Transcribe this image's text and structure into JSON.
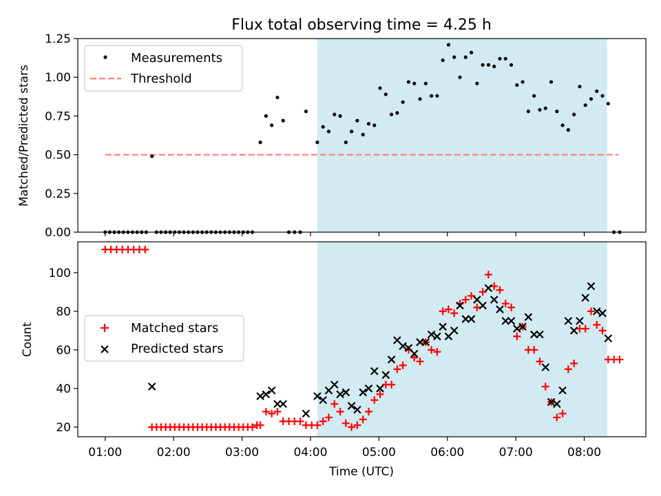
{
  "chart_data": [
    {
      "type": "scatter",
      "title": "Flux total observing time = 4.25 h",
      "xlabel": "",
      "ylabel": "Matched/Predicted stars",
      "ylim": [
        0,
        1.25
      ],
      "yticks": [
        "0.00",
        "0.25",
        "0.50",
        "0.75",
        "1.00",
        "1.25"
      ],
      "x_unit": "hours UTC",
      "xlim": [
        0.6,
        8.9
      ],
      "shaded_interval": [
        "04:06",
        "08:20"
      ],
      "shade_color": "#add8e6",
      "legend": {
        "position": "top-left",
        "entries": [
          "Measurements",
          "Threshold"
        ]
      },
      "threshold": {
        "name": "Threshold",
        "value": 0.5,
        "x_range": [
          "01:00",
          "08:30"
        ],
        "color": "#ff7f7f",
        "style": "dashed"
      },
      "series": [
        {
          "name": "Measurements",
          "color": "#000000",
          "points": [
            [
              "01:00",
              0
            ],
            [
              "01:04",
              0
            ],
            [
              "01:08",
              0
            ],
            [
              "01:12",
              0
            ],
            [
              "01:16",
              0
            ],
            [
              "01:20",
              0
            ],
            [
              "01:24",
              0
            ],
            [
              "01:28",
              0
            ],
            [
              "01:32",
              0
            ],
            [
              "01:36",
              0
            ],
            [
              "01:41",
              0.49
            ],
            [
              "01:45",
              0
            ],
            [
              "01:49",
              0
            ],
            [
              "01:53",
              0
            ],
            [
              "01:57",
              0
            ],
            [
              "02:01",
              0
            ],
            [
              "02:05",
              0
            ],
            [
              "02:09",
              0
            ],
            [
              "02:13",
              0
            ],
            [
              "02:17",
              0
            ],
            [
              "02:21",
              0
            ],
            [
              "02:25",
              0
            ],
            [
              "02:29",
              0
            ],
            [
              "02:33",
              0
            ],
            [
              "02:37",
              0
            ],
            [
              "02:41",
              0
            ],
            [
              "02:45",
              0
            ],
            [
              "02:49",
              0
            ],
            [
              "02:53",
              0
            ],
            [
              "02:57",
              0
            ],
            [
              "03:01",
              0
            ],
            [
              "03:05",
              0
            ],
            [
              "03:09",
              0
            ],
            [
              "03:16",
              0.58
            ],
            [
              "03:21",
              0.75
            ],
            [
              "03:26",
              0.69
            ],
            [
              "03:31",
              0.87
            ],
            [
              "03:36",
              0.72
            ],
            [
              "03:41",
              0
            ],
            [
              "03:46",
              0
            ],
            [
              "03:51",
              0
            ],
            [
              "03:56",
              0.78
            ],
            [
              "04:06",
              0.58
            ],
            [
              "04:11",
              0.68
            ],
            [
              "04:16",
              0.65
            ],
            [
              "04:21",
              0.76
            ],
            [
              "04:26",
              0.75
            ],
            [
              "04:31",
              0.58
            ],
            [
              "04:36",
              0.65
            ],
            [
              "04:41",
              0.72
            ],
            [
              "04:46",
              0.63
            ],
            [
              "04:51",
              0.7
            ],
            [
              "04:56",
              0.69
            ],
            [
              "05:01",
              0.93
            ],
            [
              "05:06",
              0.89
            ],
            [
              "05:11",
              0.76
            ],
            [
              "05:16",
              0.77
            ],
            [
              "05:21",
              0.84
            ],
            [
              "05:26",
              0.97
            ],
            [
              "05:31",
              0.96
            ],
            [
              "05:36",
              0.86
            ],
            [
              "05:41",
              0.96
            ],
            [
              "05:46",
              0.88
            ],
            [
              "05:51",
              0.88
            ],
            [
              "05:56",
              1.11
            ],
            [
              "06:01",
              1.21
            ],
            [
              "06:06",
              1.13
            ],
            [
              "06:11",
              1.0
            ],
            [
              "06:16",
              1.13
            ],
            [
              "06:21",
              1.16
            ],
            [
              "06:26",
              0.96
            ],
            [
              "06:31",
              1.08
            ],
            [
              "06:36",
              1.08
            ],
            [
              "06:41",
              1.07
            ],
            [
              "06:46",
              1.12
            ],
            [
              "06:51",
              1.12
            ],
            [
              "06:56",
              1.08
            ],
            [
              "07:01",
              0.95
            ],
            [
              "07:06",
              0.97
            ],
            [
              "07:11",
              0.78
            ],
            [
              "07:16",
              0.88
            ],
            [
              "07:21",
              0.79
            ],
            [
              "07:26",
              0.8
            ],
            [
              "07:31",
              0.97
            ],
            [
              "07:36",
              0.78
            ],
            [
              "07:41",
              0.69
            ],
            [
              "07:46",
              0.66
            ],
            [
              "07:51",
              0.76
            ],
            [
              "07:56",
              0.94
            ],
            [
              "08:01",
              0.82
            ],
            [
              "08:06",
              0.86
            ],
            [
              "08:11",
              0.91
            ],
            [
              "08:16",
              0.88
            ],
            [
              "08:21",
              0.83
            ],
            [
              "08:26",
              0
            ],
            [
              "08:31",
              0
            ]
          ]
        }
      ]
    },
    {
      "type": "scatter",
      "title": "",
      "xlabel": "Time (UTC)",
      "ylabel": "Count",
      "ylim": [
        15,
        116
      ],
      "yticks": [
        "20",
        "40",
        "60",
        "80",
        "100"
      ],
      "xticks": [
        "01:00",
        "02:00",
        "03:00",
        "04:00",
        "05:00",
        "06:00",
        "07:00",
        "08:00"
      ],
      "x_unit": "hours UTC",
      "xlim": [
        0.6,
        8.9
      ],
      "shaded_interval": [
        "04:06",
        "08:20"
      ],
      "legend": {
        "position": "center-left",
        "entries": [
          "Matched stars",
          "Predicted stars"
        ]
      },
      "series": [
        {
          "name": "Matched stars",
          "marker": "plus",
          "color": "#ff0000",
          "points": [
            [
              "01:00",
              112
            ],
            [
              "01:05",
              112
            ],
            [
              "01:10",
              112
            ],
            [
              "01:15",
              112
            ],
            [
              "01:20",
              112
            ],
            [
              "01:25",
              112
            ],
            [
              "01:30",
              112
            ],
            [
              "01:35",
              112
            ],
            [
              "01:41",
              20
            ],
            [
              "01:45",
              20
            ],
            [
              "01:49",
              20
            ],
            [
              "01:53",
              20
            ],
            [
              "01:57",
              20
            ],
            [
              "02:01",
              20
            ],
            [
              "02:05",
              20
            ],
            [
              "02:09",
              20
            ],
            [
              "02:13",
              20
            ],
            [
              "02:17",
              20
            ],
            [
              "02:21",
              20
            ],
            [
              "02:25",
              20
            ],
            [
              "02:29",
              20
            ],
            [
              "02:33",
              20
            ],
            [
              "02:37",
              20
            ],
            [
              "02:41",
              20
            ],
            [
              "02:45",
              20
            ],
            [
              "02:49",
              20
            ],
            [
              "02:53",
              20
            ],
            [
              "02:57",
              20
            ],
            [
              "03:01",
              20
            ],
            [
              "03:05",
              20
            ],
            [
              "03:09",
              20
            ],
            [
              "03:13",
              21
            ],
            [
              "03:16",
              21
            ],
            [
              "03:21",
              28
            ],
            [
              "03:26",
              27
            ],
            [
              "03:31",
              28
            ],
            [
              "03:36",
              23
            ],
            [
              "03:41",
              23
            ],
            [
              "03:46",
              23
            ],
            [
              "03:51",
              23
            ],
            [
              "03:56",
              21
            ],
            [
              "04:01",
              21
            ],
            [
              "04:06",
              21
            ],
            [
              "04:11",
              23
            ],
            [
              "04:16",
              25
            ],
            [
              "04:21",
              32
            ],
            [
              "04:26",
              28
            ],
            [
              "04:31",
              22
            ],
            [
              "04:36",
              20
            ],
            [
              "04:41",
              21
            ],
            [
              "04:46",
              24
            ],
            [
              "04:51",
              28
            ],
            [
              "04:56",
              34
            ],
            [
              "05:01",
              37
            ],
            [
              "05:06",
              42
            ],
            [
              "05:11",
              42
            ],
            [
              "05:16",
              50
            ],
            [
              "05:21",
              52
            ],
            [
              "05:26",
              60
            ],
            [
              "05:31",
              56
            ],
            [
              "05:36",
              54
            ],
            [
              "05:41",
              64
            ],
            [
              "05:46",
              60
            ],
            [
              "05:51",
              59
            ],
            [
              "05:56",
              80
            ],
            [
              "06:01",
              81
            ],
            [
              "06:06",
              79
            ],
            [
              "06:11",
              84
            ],
            [
              "06:16",
              86
            ],
            [
              "06:21",
              88
            ],
            [
              "06:26",
              82
            ],
            [
              "06:31",
              90
            ],
            [
              "06:36",
              99
            ],
            [
              "06:41",
              93
            ],
            [
              "06:46",
              91
            ],
            [
              "06:51",
              84
            ],
            [
              "06:56",
              82
            ],
            [
              "07:01",
              67
            ],
            [
              "07:06",
              72
            ],
            [
              "07:11",
              60
            ],
            [
              "07:16",
              60
            ],
            [
              "07:21",
              54
            ],
            [
              "07:26",
              41
            ],
            [
              "07:31",
              33
            ],
            [
              "07:36",
              25
            ],
            [
              "07:41",
              27
            ],
            [
              "07:46",
              50
            ],
            [
              "07:51",
              53
            ],
            [
              "07:56",
              71
            ],
            [
              "08:01",
              71
            ],
            [
              "08:06",
              80
            ],
            [
              "08:11",
              73
            ],
            [
              "08:16",
              70
            ],
            [
              "08:21",
              55
            ],
            [
              "08:26",
              55
            ],
            [
              "08:31",
              55
            ]
          ]
        },
        {
          "name": "Predicted stars",
          "marker": "x",
          "color": "#000000",
          "points": [
            [
              "01:41",
              41
            ],
            [
              "03:16",
              36
            ],
            [
              "03:21",
              37
            ],
            [
              "03:26",
              39
            ],
            [
              "03:31",
              32
            ],
            [
              "03:36",
              32
            ],
            [
              "03:56",
              27
            ],
            [
              "04:06",
              36
            ],
            [
              "04:11",
              34
            ],
            [
              "04:16",
              39
            ],
            [
              "04:21",
              42
            ],
            [
              "04:26",
              37
            ],
            [
              "04:31",
              38
            ],
            [
              "04:36",
              31
            ],
            [
              "04:41",
              29
            ],
            [
              "04:46",
              38
            ],
            [
              "04:51",
              40
            ],
            [
              "04:56",
              49
            ],
            [
              "05:01",
              40
            ],
            [
              "05:06",
              47
            ],
            [
              "05:11",
              55
            ],
            [
              "05:16",
              65
            ],
            [
              "05:21",
              62
            ],
            [
              "05:26",
              61
            ],
            [
              "05:31",
              58
            ],
            [
              "05:36",
              64
            ],
            [
              "05:41",
              64
            ],
            [
              "05:46",
              68
            ],
            [
              "05:51",
              67
            ],
            [
              "05:56",
              72
            ],
            [
              "06:01",
              67
            ],
            [
              "06:06",
              70
            ],
            [
              "06:11",
              83
            ],
            [
              "06:16",
              76
            ],
            [
              "06:21",
              76
            ],
            [
              "06:26",
              86
            ],
            [
              "06:31",
              83
            ],
            [
              "06:36",
              92
            ],
            [
              "06:41",
              86
            ],
            [
              "06:46",
              81
            ],
            [
              "06:51",
              75
            ],
            [
              "06:56",
              75
            ],
            [
              "07:01",
              71
            ],
            [
              "07:06",
              72
            ],
            [
              "07:11",
              77
            ],
            [
              "07:16",
              68
            ],
            [
              "07:21",
              68
            ],
            [
              "07:26",
              51
            ],
            [
              "07:31",
              33
            ],
            [
              "07:36",
              32
            ],
            [
              "07:41",
              39
            ],
            [
              "07:46",
              75
            ],
            [
              "07:51",
              70
            ],
            [
              "07:56",
              75
            ],
            [
              "08:01",
              87
            ],
            [
              "08:06",
              93
            ],
            [
              "08:11",
              80
            ],
            [
              "08:16",
              79
            ],
            [
              "08:21",
              66
            ]
          ]
        }
      ]
    }
  ]
}
